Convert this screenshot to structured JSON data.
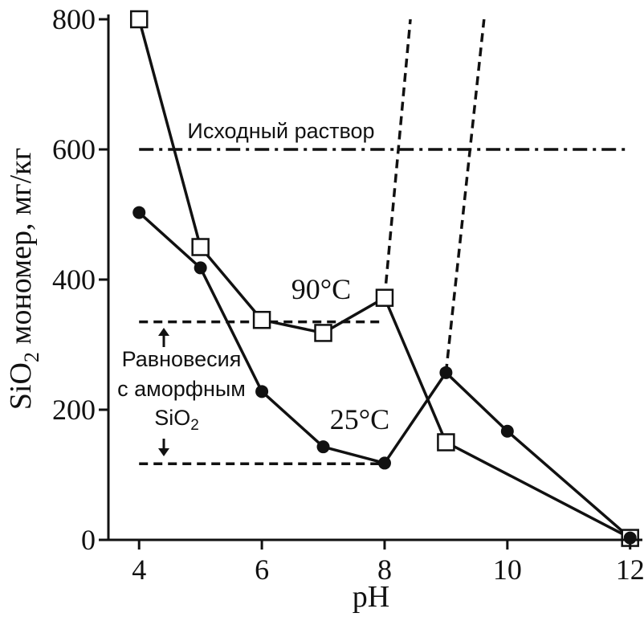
{
  "chart_data": {
    "type": "line",
    "xlabel": "pH",
    "ylabel": "SiO",
    "ylabel_subscript": "2",
    "ylabel_rest": " мономер, мг/кг",
    "xlim": [
      3.5,
      12.2
    ],
    "ylim": [
      0,
      800
    ],
    "x_ticks": [
      4,
      6,
      8,
      10,
      12
    ],
    "y_ticks": [
      0,
      200,
      400,
      600,
      800
    ],
    "grid": false,
    "series": [
      {
        "name": "90°C",
        "marker": "open-square",
        "x": [
          4,
          5,
          6,
          7,
          8,
          9,
          12
        ],
        "y": [
          800,
          450,
          338,
          318,
          372,
          150,
          3
        ]
      },
      {
        "name": "25°C",
        "marker": "filled-circle",
        "x": [
          4,
          5,
          6,
          7,
          8,
          9,
          10,
          12
        ],
        "y": [
          503,
          418,
          228,
          143,
          118,
          257,
          167,
          3
        ]
      }
    ],
    "reference_lines": [
      {
        "label": "Исходный раствор",
        "style": "dash-dot",
        "y": 600,
        "x": [
          4,
          12
        ]
      },
      {
        "label": "Равновесия с аморфным SiO2 (90°C)",
        "style": "dashed",
        "y": 335,
        "x": [
          4,
          8
        ]
      },
      {
        "label": "Равновесия с аморфным SiO2 (25°C)",
        "style": "dashed",
        "y": 117,
        "x": [
          4,
          8
        ]
      }
    ],
    "dashed_extrapolations": [
      {
        "x": [
          8,
          8.42
        ],
        "y": [
          372,
          800
        ]
      },
      {
        "x": [
          9,
          9.62
        ],
        "y": [
          257,
          800
        ]
      }
    ],
    "annotations": {
      "initial_solution": "Исходный раствор",
      "label_90": "90°C",
      "label_25": "25°C",
      "equilibrium_line1": "Равновесия",
      "equilibrium_line2": "с аморфным",
      "equilibrium_line3_main": "SiO",
      "equilibrium_line3_sub": "2"
    }
  }
}
